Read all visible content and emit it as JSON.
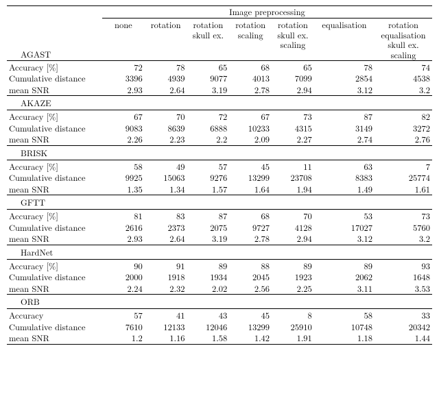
{
  "header": {
    "span": "Image preprocessing",
    "cols": [
      "none",
      "rotation",
      "rotation\nskull ex.",
      "rotation\nscaling",
      "rotation\nskull ex.\nscaling",
      "equalisation",
      "rotation\nequalisation\nskull ex.\nscaling"
    ]
  },
  "row_labels": [
    "Accuracy [%]",
    "Cumulative distance",
    "mean SNR"
  ],
  "row_labels_orb": [
    "Accuracy",
    "Cumulative distance",
    "mean SNR"
  ],
  "sections": [
    {
      "name": "AGAST",
      "rows": [
        [
          "72",
          "78",
          "65",
          "68",
          "65",
          "78",
          "74"
        ],
        [
          "3396",
          "4939",
          "9077",
          "4013",
          "7099",
          "2854",
          "4538"
        ],
        [
          "2.93",
          "2.64",
          "3.19",
          "2.78",
          "2.94",
          "3.12",
          "3.2"
        ]
      ]
    },
    {
      "name": "AKAZE",
      "rows": [
        [
          "67",
          "70",
          "72",
          "67",
          "73",
          "87",
          "82"
        ],
        [
          "9083",
          "8639",
          "6888",
          "10233",
          "4315",
          "3149",
          "3272"
        ],
        [
          "2.26",
          "2.23",
          "2.2",
          "2.09",
          "2.27",
          "2.74",
          "2.76"
        ]
      ]
    },
    {
      "name": "BRISK",
      "rows": [
        [
          "58",
          "49",
          "57",
          "45",
          "11",
          "63",
          "7"
        ],
        [
          "9925",
          "15063",
          "9276",
          "13299",
          "23708",
          "8383",
          "25774"
        ],
        [
          "1.35",
          "1.34",
          "1.57",
          "1.64",
          "1.94",
          "1.49",
          "1.61"
        ]
      ]
    },
    {
      "name": "GFTT",
      "rows": [
        [
          "81",
          "83",
          "87",
          "68",
          "70",
          "53",
          "73"
        ],
        [
          "2616",
          "2373",
          "2075",
          "9727",
          "4128",
          "17027",
          "5760"
        ],
        [
          "2.93",
          "2.64",
          "3.19",
          "2.78",
          "2.94",
          "3.12",
          "3.2"
        ]
      ]
    },
    {
      "name": "HardNet",
      "rows": [
        [
          "90",
          "91",
          "89",
          "88",
          "89",
          "89",
          "93"
        ],
        [
          "2000",
          "1918",
          "1934",
          "2045",
          "1923",
          "2062",
          "1648"
        ],
        [
          "2.24",
          "2.32",
          "2.02",
          "2.56",
          "2.25",
          "3.11",
          "3.53"
        ]
      ]
    },
    {
      "name": "ORB",
      "rows": [
        [
          "57",
          "41",
          "43",
          "45",
          "8",
          "58",
          "33"
        ],
        [
          "7610",
          "12133",
          "12046",
          "13299",
          "25910",
          "10748",
          "20342"
        ],
        [
          "1.2",
          "1.16",
          "1.58",
          "1.42",
          "1.91",
          "1.18",
          "1.44"
        ]
      ]
    }
  ]
}
